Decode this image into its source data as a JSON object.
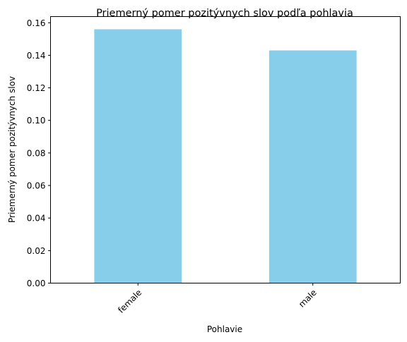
{
  "chart_data": {
    "type": "bar",
    "title": "Priemerný pomer pozitývnych slov podľa pohlavia",
    "xlabel": "Pohlavie",
    "ylabel": "Priemerný pomer pozitývnych slov",
    "categories": [
      "female",
      "male"
    ],
    "values": [
      0.156,
      0.143
    ],
    "ylim": [
      0,
      0.1638
    ],
    "yticks": [
      0.0,
      0.02,
      0.04,
      0.06,
      0.08,
      0.1,
      0.12,
      0.14,
      0.16
    ],
    "ytick_labels": [
      "0.00",
      "0.02",
      "0.04",
      "0.06",
      "0.08",
      "0.10",
      "0.12",
      "0.14",
      "0.16"
    ],
    "bar_color": "#87ceeb",
    "grid": false,
    "legend": "none",
    "xtick_rotation_deg": 45
  }
}
